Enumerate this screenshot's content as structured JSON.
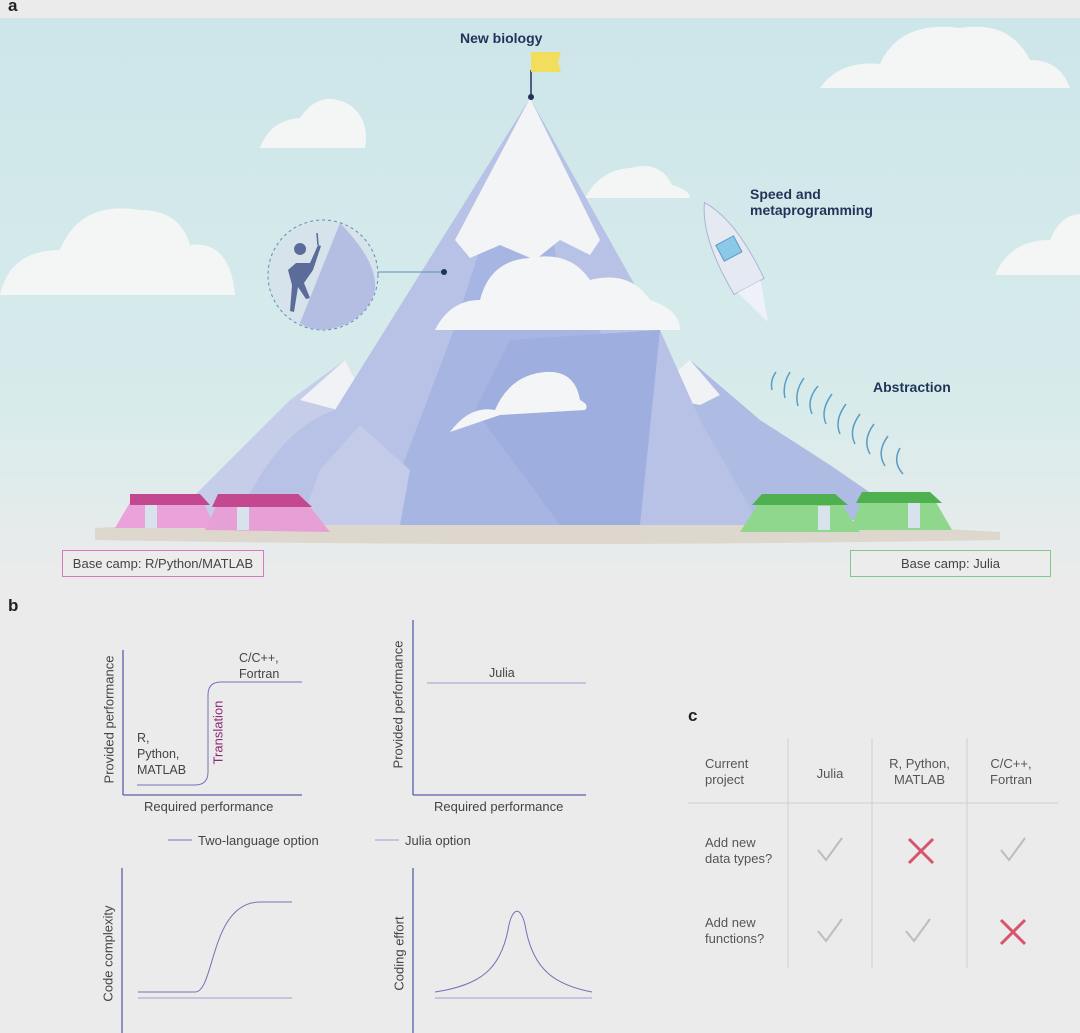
{
  "panels": {
    "a": "a",
    "b": "b",
    "c": "c"
  },
  "illustration": {
    "summit_label": "New biology",
    "rocket_label": [
      "Speed and",
      "metaprogramming"
    ],
    "signal_label": "Abstraction",
    "camp_left": "Base camp: R/Python/MATLAB",
    "camp_right": "Base camp: Julia",
    "colors": {
      "sky": "#cde6ea",
      "mountain": "#b9c4e6",
      "tent_left": "#e9a0d8",
      "tent_right": "#8fd88f",
      "flag": "#f3dd5c",
      "text_dark": "#1f3458"
    }
  },
  "plot_two_language": {
    "ylabel": "Provided performance",
    "xlabel": "Required performance",
    "low_label": [
      "R,",
      "Python,",
      "MATLAB"
    ],
    "high_label": [
      "C/C++,",
      "Fortran"
    ],
    "step_label": "Translation"
  },
  "plot_julia": {
    "ylabel": "Provided performance",
    "xlabel": "Required performance",
    "line_label": "Julia"
  },
  "legend": {
    "two_language": "Two-language option",
    "julia": "Julia option"
  },
  "plot_complexity": {
    "ylabel": "Code complexity"
  },
  "plot_effort": {
    "ylabel": "Coding effort"
  },
  "table": {
    "corner": [
      "Current",
      "project"
    ],
    "columns": [
      [
        "Julia"
      ],
      [
        "R, Python,",
        "MATLAB"
      ],
      [
        "C/C++,",
        "Fortran"
      ]
    ],
    "rows": [
      {
        "label": [
          "Add new",
          "data types?"
        ],
        "values": [
          "check",
          "cross",
          "check"
        ]
      },
      {
        "label": [
          "Add new",
          "functions?"
        ],
        "values": [
          "check",
          "check",
          "cross"
        ]
      }
    ]
  }
}
